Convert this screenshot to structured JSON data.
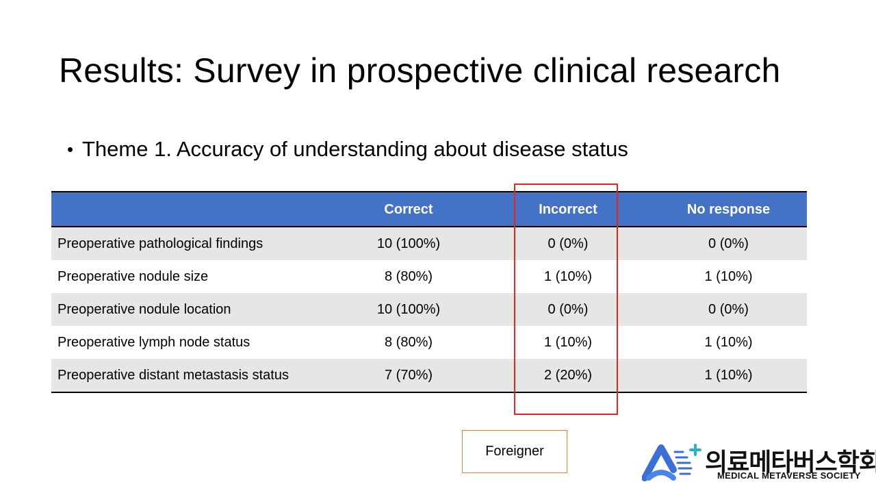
{
  "slide": {
    "title": "Results: Survey in prospective clinical research",
    "bullet": "Theme 1. Accuracy of understanding about disease status"
  },
  "table": {
    "headers": [
      "",
      "Correct",
      "Incorrect",
      "No response"
    ],
    "rows": [
      [
        "Preoperative pathological findings",
        "10 (100%)",
        "0 (0%)",
        "0 (0%)"
      ],
      [
        "Preoperative nodule size",
        "8 (80%)",
        "1 (10%)",
        "1 (10%)"
      ],
      [
        "Preoperative nodule location",
        "10 (100%)",
        "0 (0%)",
        "0 (0%)"
      ],
      [
        "Preoperative lymph node status",
        "8 (80%)",
        "1 (10%)",
        "1 (10%)"
      ],
      [
        "Preoperative distant metastasis status",
        "7 (70%)",
        "2 (20%)",
        "1 (10%)"
      ]
    ]
  },
  "note": {
    "text": "Foreigner"
  },
  "logo": {
    "icon": "medical-metaverse-logo-icon",
    "text_ko": "의료메타버스학회",
    "text_en": "MEDICAL METAVERSE SOCIETY"
  },
  "colors": {
    "header_fill": "#4472c4",
    "band_fill": "#e7e6e6",
    "highlight_outline": "#e8231b",
    "note_outline": "#ed7d31",
    "logo_blue": "#3b6fd6",
    "logo_teal": "#25b3c9"
  }
}
